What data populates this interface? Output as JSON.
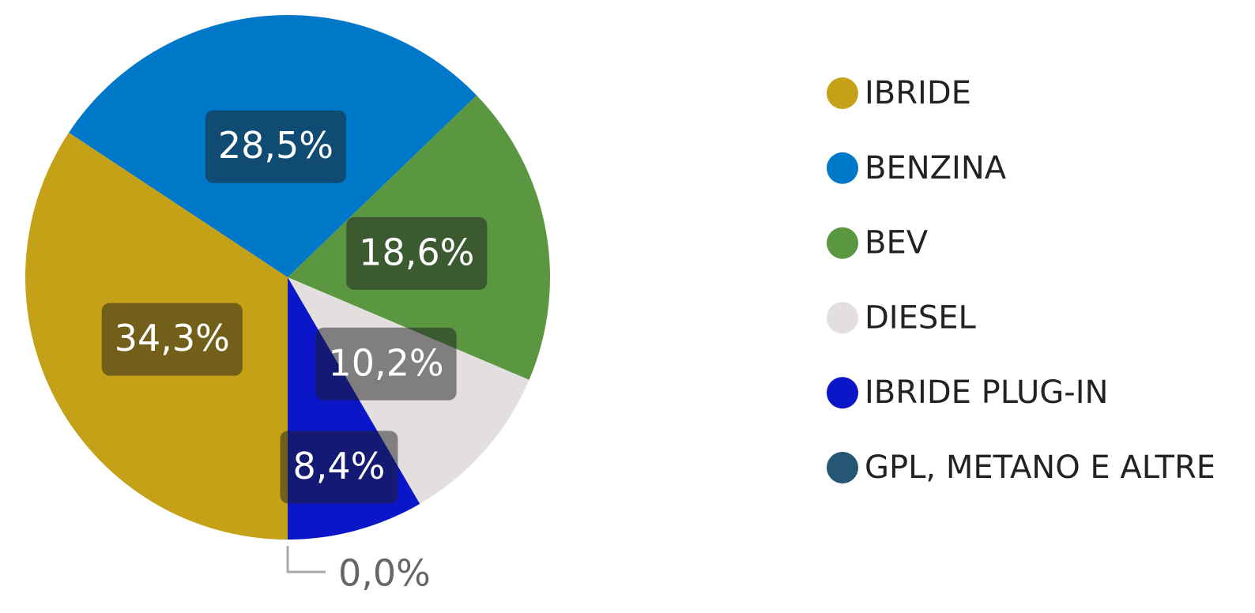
{
  "chart_data": {
    "type": "pie",
    "categories": [
      "IBRIDE",
      "BENZINA",
      "BEV",
      "DIESEL",
      "IBRIDE PLUG-IN",
      "GPL, METANO E ALTRE"
    ],
    "values": [
      34.3,
      28.5,
      18.6,
      10.2,
      8.4,
      0.0
    ],
    "value_labels": [
      "34,3%",
      "28,5%",
      "18,6%",
      "10,2%",
      "8,4%",
      "0,0%"
    ],
    "colors": [
      "#C4A116",
      "#0078C9",
      "#5B9640",
      "#E3DFDF",
      "#0A16C8",
      "#255673"
    ],
    "legend": "right"
  }
}
